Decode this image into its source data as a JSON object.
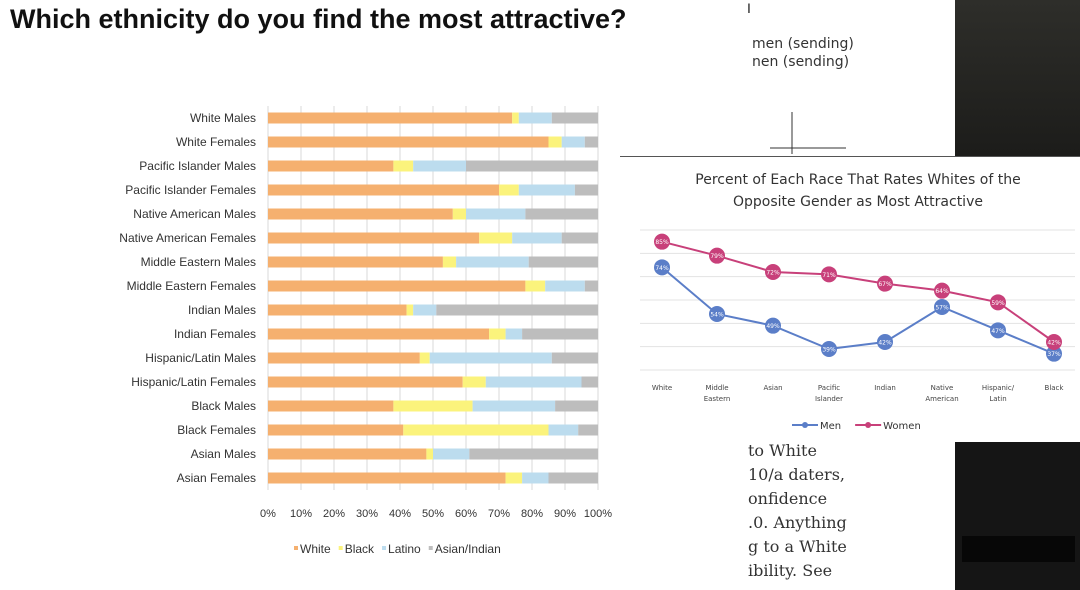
{
  "slide": {
    "title": "Which ethnicity do you find the most attractive?"
  },
  "background_doc": {
    "cursor_mark": "I",
    "legend_lines": [
      "men (sending)",
      "nen (sending)"
    ],
    "text_lines": [
      "to White",
      "10/a daters,",
      "onfidence",
      ".0. Anything",
      "g to a White",
      "ibility. See"
    ]
  },
  "chart_data": [
    {
      "type": "bar",
      "stacked": true,
      "orientation": "horizontal",
      "categories": [
        "White Males",
        "White Females",
        "Pacific Islander Males",
        "Pacific Islander Females",
        "Native American Males",
        "Native American Females",
        "Middle Eastern Males",
        "Middle Eastern Females",
        "Indian Males",
        "Indian Females",
        "Hispanic/Latin Males",
        "Hispanic/Latin Females",
        "Black Males",
        "Black Females",
        "Asian Males",
        "Asian Females"
      ],
      "series": [
        {
          "name": "White",
          "color": "#f5b06f",
          "values": [
            74,
            85,
            38,
            70,
            56,
            64,
            53,
            78,
            42,
            67,
            46,
            59,
            38,
            41,
            48,
            72
          ]
        },
        {
          "name": "Black",
          "color": "#fbf37c",
          "values": [
            2,
            4,
            6,
            6,
            4,
            10,
            4,
            6,
            2,
            5,
            3,
            7,
            24,
            44,
            2,
            5
          ]
        },
        {
          "name": "Latino",
          "color": "#bcdcee",
          "values": [
            10,
            7,
            16,
            17,
            18,
            15,
            22,
            12,
            7,
            5,
            37,
            29,
            25,
            9,
            11,
            8
          ]
        },
        {
          "name": "Asian/Indian",
          "color": "#bdbdbd",
          "values": [
            14,
            4,
            40,
            7,
            22,
            11,
            21,
            4,
            49,
            23,
            14,
            5,
            13,
            6,
            39,
            15
          ]
        }
      ],
      "xticks": [
        "0%",
        "10%",
        "20%",
        "30%",
        "40%",
        "50%",
        "60%",
        "70%",
        "80%",
        "90%",
        "100%"
      ],
      "xlim": [
        0,
        100
      ],
      "grid": true,
      "legend_position": "bottom"
    },
    {
      "type": "line",
      "title": "Percent of Each Race That Rates Whites of the Opposite Gender as Most Attractive",
      "title_lines": [
        "Percent of Each Race That Rates Whites of the",
        "Opposite Gender as Most Attractive"
      ],
      "categories": [
        [
          "White"
        ],
        [
          "Middle",
          "Eastern"
        ],
        [
          "Asian"
        ],
        [
          "Pacific",
          "Islander"
        ],
        [
          "Indian"
        ],
        [
          "Native",
          "American"
        ],
        [
          "Hispanic/",
          "Latin"
        ],
        [
          "Black"
        ]
      ],
      "ylim": [
        30,
        90
      ],
      "series": [
        {
          "name": "Men",
          "color": "#5b7ec8",
          "values": [
            74,
            54,
            49,
            39,
            42,
            57,
            47,
            37
          ],
          "labels": [
            "74%",
            "54%",
            "49%",
            "39%",
            "42%",
            "57%",
            "47%",
            "37%"
          ]
        },
        {
          "name": "Women",
          "color": "#c8407a",
          "values": [
            85,
            79,
            72,
            71,
            67,
            64,
            59,
            42
          ],
          "labels": [
            "85%",
            "79%",
            "72%",
            "71%",
            "67%",
            "64%",
            "59%",
            "42%"
          ]
        }
      ],
      "grid": true,
      "legend_position": "bottom"
    }
  ]
}
